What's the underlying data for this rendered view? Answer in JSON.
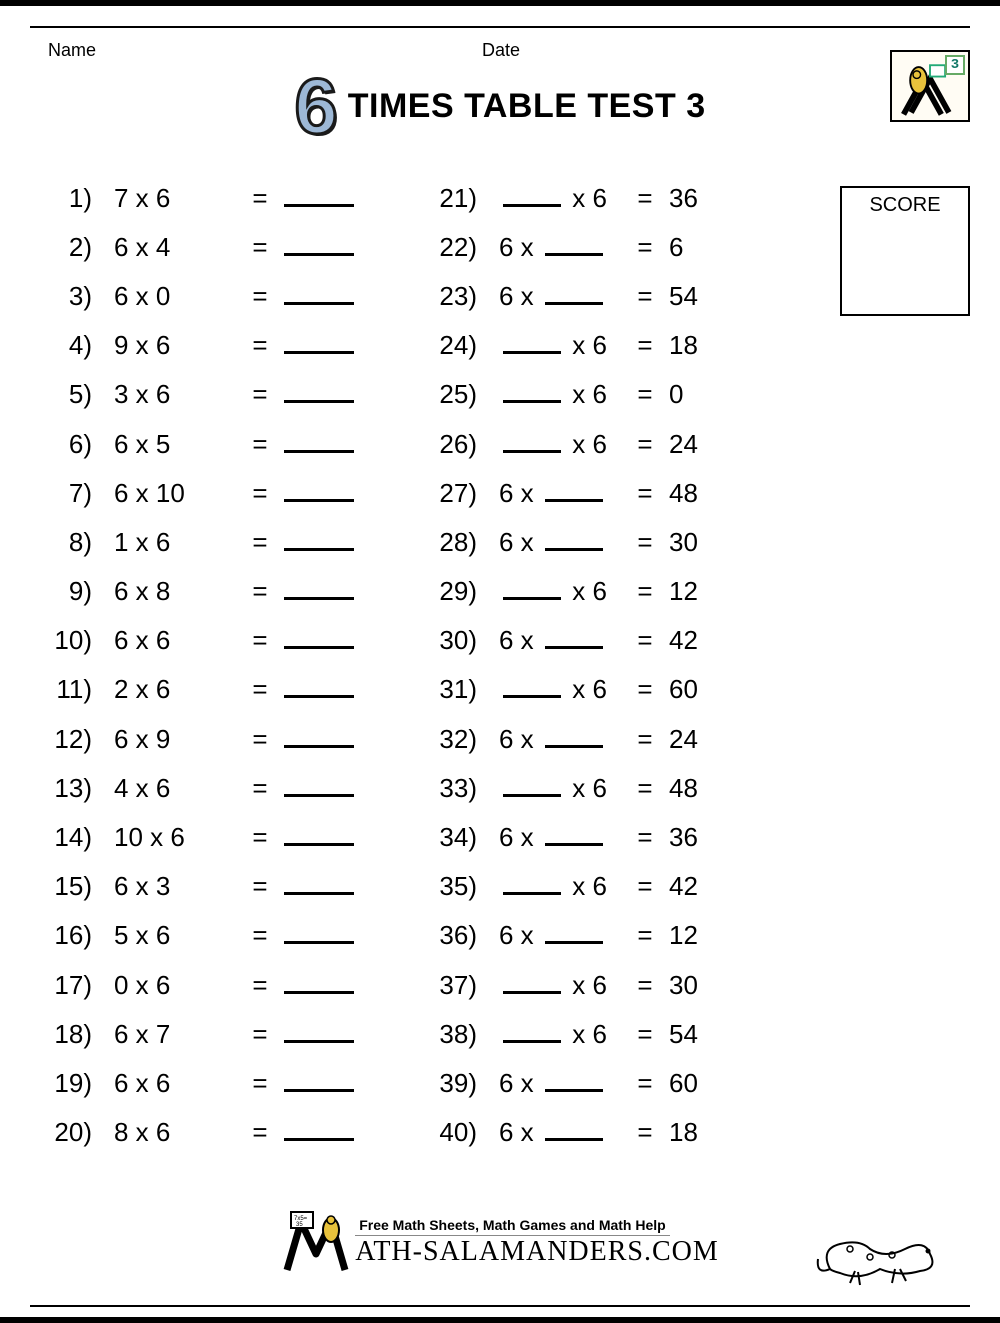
{
  "meta": {
    "name_label": "Name",
    "date_label": "Date"
  },
  "title": {
    "big_number": "6",
    "text": "TIMES TABLE TEST 3",
    "big_number_fill": "#9db8d6",
    "big_number_stroke": "#1a1a1a",
    "title_fontsize": 34
  },
  "corner_badge_value": "3",
  "score_label": "SCORE",
  "styling": {
    "body_fontsize": 26,
    "row_vpad": 11.6,
    "blank_width": 70,
    "short_blank_width": 58,
    "border_color": "#000000",
    "background_color": "#ffffff"
  },
  "equals_sign": "=",
  "multiply_sign": "x",
  "left_problems": [
    {
      "n": 1,
      "a": "7",
      "b": "6"
    },
    {
      "n": 2,
      "a": "6",
      "b": "4"
    },
    {
      "n": 3,
      "a": "6",
      "b": "0"
    },
    {
      "n": 4,
      "a": "9",
      "b": "6"
    },
    {
      "n": 5,
      "a": "3",
      "b": "6"
    },
    {
      "n": 6,
      "a": "6",
      "b": "5"
    },
    {
      "n": 7,
      "a": "6",
      "b": "10"
    },
    {
      "n": 8,
      "a": "1",
      "b": "6"
    },
    {
      "n": 9,
      "a": "6",
      "b": "8"
    },
    {
      "n": 10,
      "a": "6",
      "b": "6"
    },
    {
      "n": 11,
      "a": "2",
      "b": "6"
    },
    {
      "n": 12,
      "a": "6",
      "b": "9"
    },
    {
      "n": 13,
      "a": "4",
      "b": "6"
    },
    {
      "n": 14,
      "a": "10",
      "b": "6"
    },
    {
      "n": 15,
      "a": "6",
      "b": "3"
    },
    {
      "n": 16,
      "a": "5",
      "b": "6"
    },
    {
      "n": 17,
      "a": "0",
      "b": "6"
    },
    {
      "n": 18,
      "a": "6",
      "b": "7"
    },
    {
      "n": 19,
      "a": "6",
      "b": "6"
    },
    {
      "n": 20,
      "a": "8",
      "b": "6"
    }
  ],
  "right_problems": [
    {
      "n": 21,
      "blank": "a",
      "other": "6",
      "result": "36"
    },
    {
      "n": 22,
      "blank": "b",
      "other": "6",
      "result": "6"
    },
    {
      "n": 23,
      "blank": "b",
      "other": "6",
      "result": "54"
    },
    {
      "n": 24,
      "blank": "a",
      "other": "6",
      "result": "18"
    },
    {
      "n": 25,
      "blank": "a",
      "other": "6",
      "result": "0"
    },
    {
      "n": 26,
      "blank": "a",
      "other": "6",
      "result": "24"
    },
    {
      "n": 27,
      "blank": "b",
      "other": "6",
      "result": "48"
    },
    {
      "n": 28,
      "blank": "b",
      "other": "6",
      "result": "30"
    },
    {
      "n": 29,
      "blank": "a",
      "other": "6",
      "result": "12"
    },
    {
      "n": 30,
      "blank": "b",
      "other": "6",
      "result": "42"
    },
    {
      "n": 31,
      "blank": "a",
      "other": "6",
      "result": "60"
    },
    {
      "n": 32,
      "blank": "b",
      "other": "6",
      "result": "24"
    },
    {
      "n": 33,
      "blank": "a",
      "other": "6",
      "result": "48"
    },
    {
      "n": 34,
      "blank": "b",
      "other": "6",
      "result": "36"
    },
    {
      "n": 35,
      "blank": "a",
      "other": "6",
      "result": "42"
    },
    {
      "n": 36,
      "blank": "b",
      "other": "6",
      "result": "12"
    },
    {
      "n": 37,
      "blank": "a",
      "other": "6",
      "result": "30"
    },
    {
      "n": 38,
      "blank": "a",
      "other": "6",
      "result": "54"
    },
    {
      "n": 39,
      "blank": "b",
      "other": "6",
      "result": "60"
    },
    {
      "n": 40,
      "blank": "b",
      "other": "6",
      "result": "18"
    }
  ],
  "footer": {
    "tagline": "Free Math Sheets, Math Games and Math Help",
    "brand": "ATH-SALAMANDERS.COM"
  }
}
